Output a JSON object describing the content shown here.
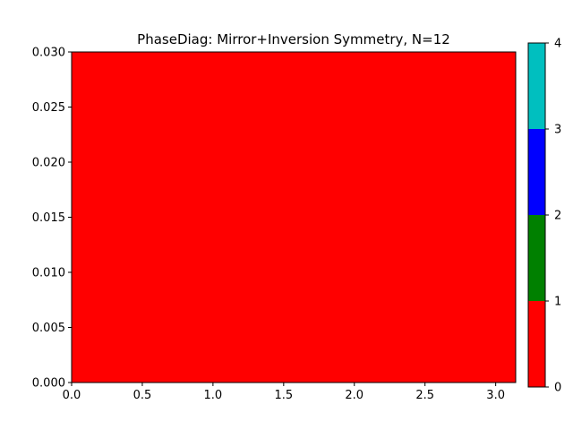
{
  "chart_data": {
    "type": "heatmap",
    "title": "PhaseDiag: Mirror+Inversion Symmetry, N=12",
    "xlabel": "",
    "ylabel": "",
    "xlim": [
      0,
      3.14159
    ],
    "ylim": [
      0,
      0.03
    ],
    "x_ticks": [
      "0.0",
      "0.5",
      "1.0",
      "1.5",
      "2.0",
      "2.5",
      "3.0"
    ],
    "y_ticks": [
      "0.000",
      "0.005",
      "0.010",
      "0.015",
      "0.020",
      "0.025",
      "0.030"
    ],
    "grid": false,
    "cells": [
      {
        "x_range": [
          0,
          3.14159
        ],
        "y_range": [
          0,
          0.03
        ],
        "value": 0.5
      }
    ],
    "colorbar": {
      "range": [
        0,
        4
      ],
      "ticks": [
        "0",
        "1",
        "2",
        "3",
        "4"
      ],
      "levels": [
        {
          "from": 0,
          "to": 1,
          "color": "#ff0000"
        },
        {
          "from": 1,
          "to": 2,
          "color": "#008000"
        },
        {
          "from": 2,
          "to": 3,
          "color": "#0000ff"
        },
        {
          "from": 3,
          "to": 4,
          "color": "#00bfbf"
        }
      ]
    }
  }
}
